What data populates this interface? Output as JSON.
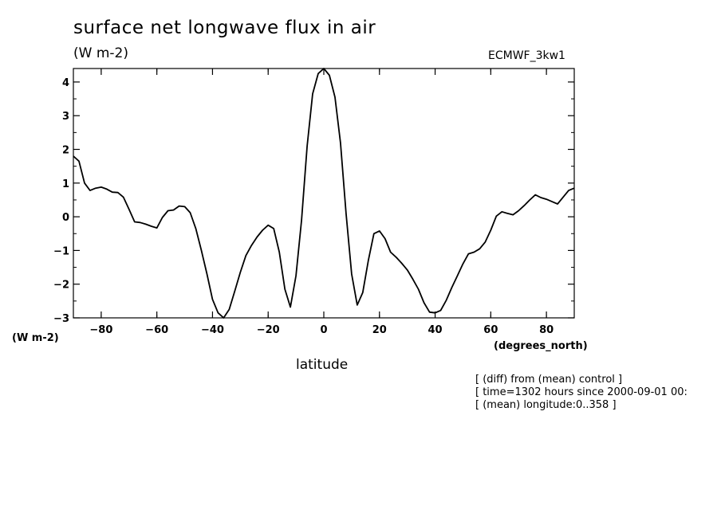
{
  "header": {
    "title": "surface net longwave flux in air",
    "units": "(W m-2)",
    "dataset": "ECMWF_3kw1"
  },
  "notes": [
    "[ (diff) from (mean) control ]",
    "[ time=1302 hours since 2000-09-01 00:",
    "[ (mean) longitude:0..358 ]"
  ],
  "chart_data": {
    "type": "line",
    "title": "surface net longwave flux in air",
    "xlabel": "latitude",
    "xunits": "(degrees_north)",
    "ylabel": "(W m-2)",
    "xlim": [
      -90,
      90
    ],
    "ylim": [
      -3,
      4.4
    ],
    "xticks": [
      -80,
      -60,
      -40,
      -20,
      0,
      20,
      40,
      60,
      80
    ],
    "yticks": [
      -3,
      -2,
      -1,
      0,
      1,
      2,
      3,
      4
    ],
    "xtick_labels": [
      "-80",
      "-60",
      "-40",
      "-20",
      "0",
      "20",
      "40",
      "60",
      "80"
    ],
    "ytick_labels": [
      "-3",
      "-2",
      "-1",
      "0",
      "1",
      "2",
      "3",
      "4"
    ],
    "grid": false,
    "series": [
      {
        "name": "ECMWF_3kw1",
        "color": "#000000",
        "x": [
          -90,
          -88,
          -86,
          -84,
          -82,
          -80,
          -78,
          -76,
          -74,
          -72,
          -70,
          -68,
          -66,
          -64,
          -62,
          -60,
          -58,
          -56,
          -54,
          -52,
          -50,
          -48,
          -46,
          -44,
          -42,
          -40,
          -38,
          -36,
          -34,
          -32,
          -30,
          -28,
          -26,
          -24,
          -22,
          -20,
          -18,
          -16,
          -14,
          -12,
          -10,
          -8,
          -6,
          -4,
          -2,
          0,
          2,
          4,
          6,
          8,
          10,
          12,
          14,
          16,
          18,
          20,
          22,
          24,
          26,
          28,
          30,
          32,
          34,
          36,
          38,
          40,
          42,
          44,
          46,
          48,
          50,
          52,
          54,
          56,
          58,
          60,
          62,
          64,
          66,
          68,
          70,
          72,
          74,
          76,
          78,
          80,
          82,
          84,
          86,
          88,
          90
        ],
        "values": [
          1.8,
          1.65,
          1.0,
          0.78,
          0.85,
          0.88,
          0.82,
          0.73,
          0.72,
          0.58,
          0.22,
          -0.15,
          -0.17,
          -0.22,
          -0.28,
          -0.33,
          -0.02,
          0.18,
          0.2,
          0.32,
          0.3,
          0.12,
          -0.35,
          -1.0,
          -1.7,
          -2.45,
          -2.85,
          -3.0,
          -2.75,
          -2.2,
          -1.65,
          -1.15,
          -0.85,
          -0.6,
          -0.4,
          -0.25,
          -0.35,
          -1.05,
          -2.15,
          -2.68,
          -1.75,
          -0.1,
          2.1,
          3.65,
          4.25,
          4.4,
          4.2,
          3.55,
          2.2,
          0.1,
          -1.7,
          -2.62,
          -2.25,
          -1.3,
          -0.5,
          -0.42,
          -0.65,
          -1.05,
          -1.2,
          -1.38,
          -1.58,
          -1.85,
          -2.15,
          -2.55,
          -2.83,
          -2.85,
          -2.78,
          -2.48,
          -2.1,
          -1.75,
          -1.4,
          -1.1,
          -1.05,
          -0.95,
          -0.75,
          -0.4,
          0.02,
          0.15,
          0.1,
          0.06,
          0.18,
          0.33,
          0.5,
          0.65,
          0.57,
          0.52,
          0.45,
          0.38,
          0.58,
          0.78,
          0.85
        ]
      }
    ]
  }
}
